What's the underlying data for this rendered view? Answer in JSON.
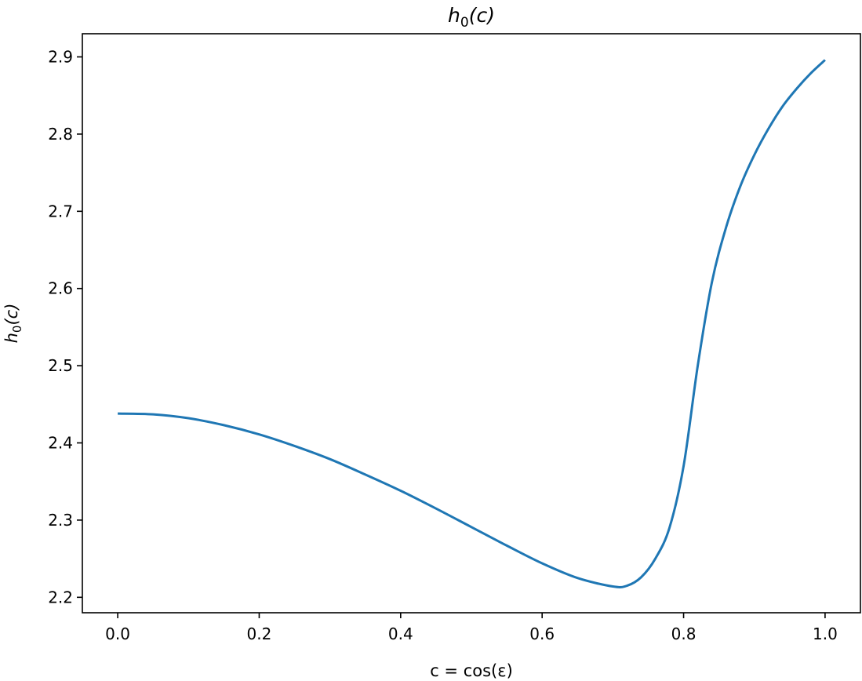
{
  "chart_data": {
    "type": "line",
    "title": {
      "base": "h",
      "sub": "0",
      "arg": "(c)"
    },
    "xlabel": "c = cos(ε)",
    "ylabel": {
      "base": "h",
      "sub": "0",
      "arg": "(c)"
    },
    "xlim": [
      -0.05,
      1.05
    ],
    "ylim": [
      2.18,
      2.93
    ],
    "xticks": [
      "0.0",
      "0.2",
      "0.4",
      "0.6",
      "0.8",
      "1.0"
    ],
    "yticks": [
      "2.2",
      "2.3",
      "2.4",
      "2.5",
      "2.6",
      "2.7",
      "2.8",
      "2.9"
    ],
    "grid": false,
    "line_color": "#1f77b4",
    "series": [
      {
        "x": [
          0.0,
          0.05,
          0.1,
          0.15,
          0.2,
          0.25,
          0.3,
          0.35,
          0.4,
          0.45,
          0.5,
          0.55,
          0.6,
          0.65,
          0.7,
          0.72,
          0.74,
          0.76,
          0.78,
          0.8,
          0.82,
          0.84,
          0.86,
          0.88,
          0.9,
          0.92,
          0.94,
          0.96,
          0.98,
          1.0
        ],
        "y": [
          2.438,
          2.437,
          2.432,
          2.423,
          2.411,
          2.396,
          2.379,
          2.359,
          2.338,
          2.315,
          2.291,
          2.267,
          2.244,
          2.225,
          2.214,
          2.215,
          2.226,
          2.25,
          2.29,
          2.37,
          2.5,
          2.608,
          2.679,
          2.732,
          2.773,
          2.807,
          2.836,
          2.859,
          2.879,
          2.896
        ]
      }
    ]
  }
}
